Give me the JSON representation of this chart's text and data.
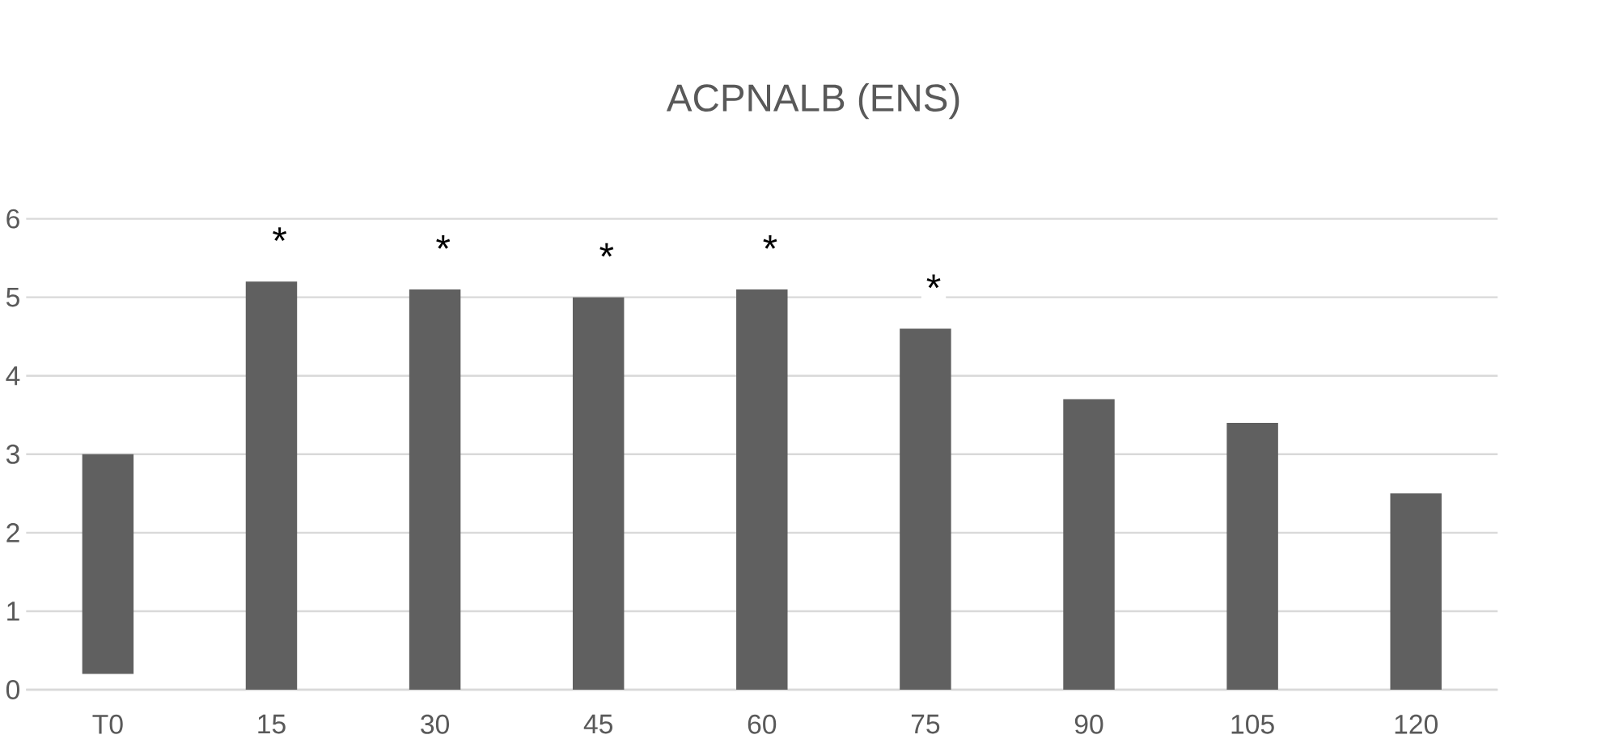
{
  "chart_data": {
    "type": "bar",
    "title": "ACPNALB (ENS)",
    "categories": [
      "T0",
      "15",
      "30",
      "45",
      "60",
      "75",
      "90",
      "105",
      "120"
    ],
    "values": [
      2.8,
      5.2,
      5.1,
      5.0,
      5.1,
      4.6,
      3.7,
      3.4,
      2.5
    ],
    "base": [
      0.2,
      0,
      0,
      0,
      0,
      0,
      0,
      0,
      0
    ],
    "color": "#606060",
    "ylim": [
      0,
      6
    ],
    "yticks": [
      0,
      1,
      2,
      3,
      4,
      5,
      6
    ],
    "grid": "y",
    "annotations": [
      {
        "text": "*",
        "x": "15",
        "y": 5.2
      },
      {
        "text": "*",
        "x": "30",
        "y": 5.1
      },
      {
        "text": "*",
        "x": "45",
        "y": 5.0
      },
      {
        "text": "*",
        "x": "60",
        "y": 5.1
      },
      {
        "text": "*",
        "x": "75",
        "y": 4.6
      }
    ]
  }
}
